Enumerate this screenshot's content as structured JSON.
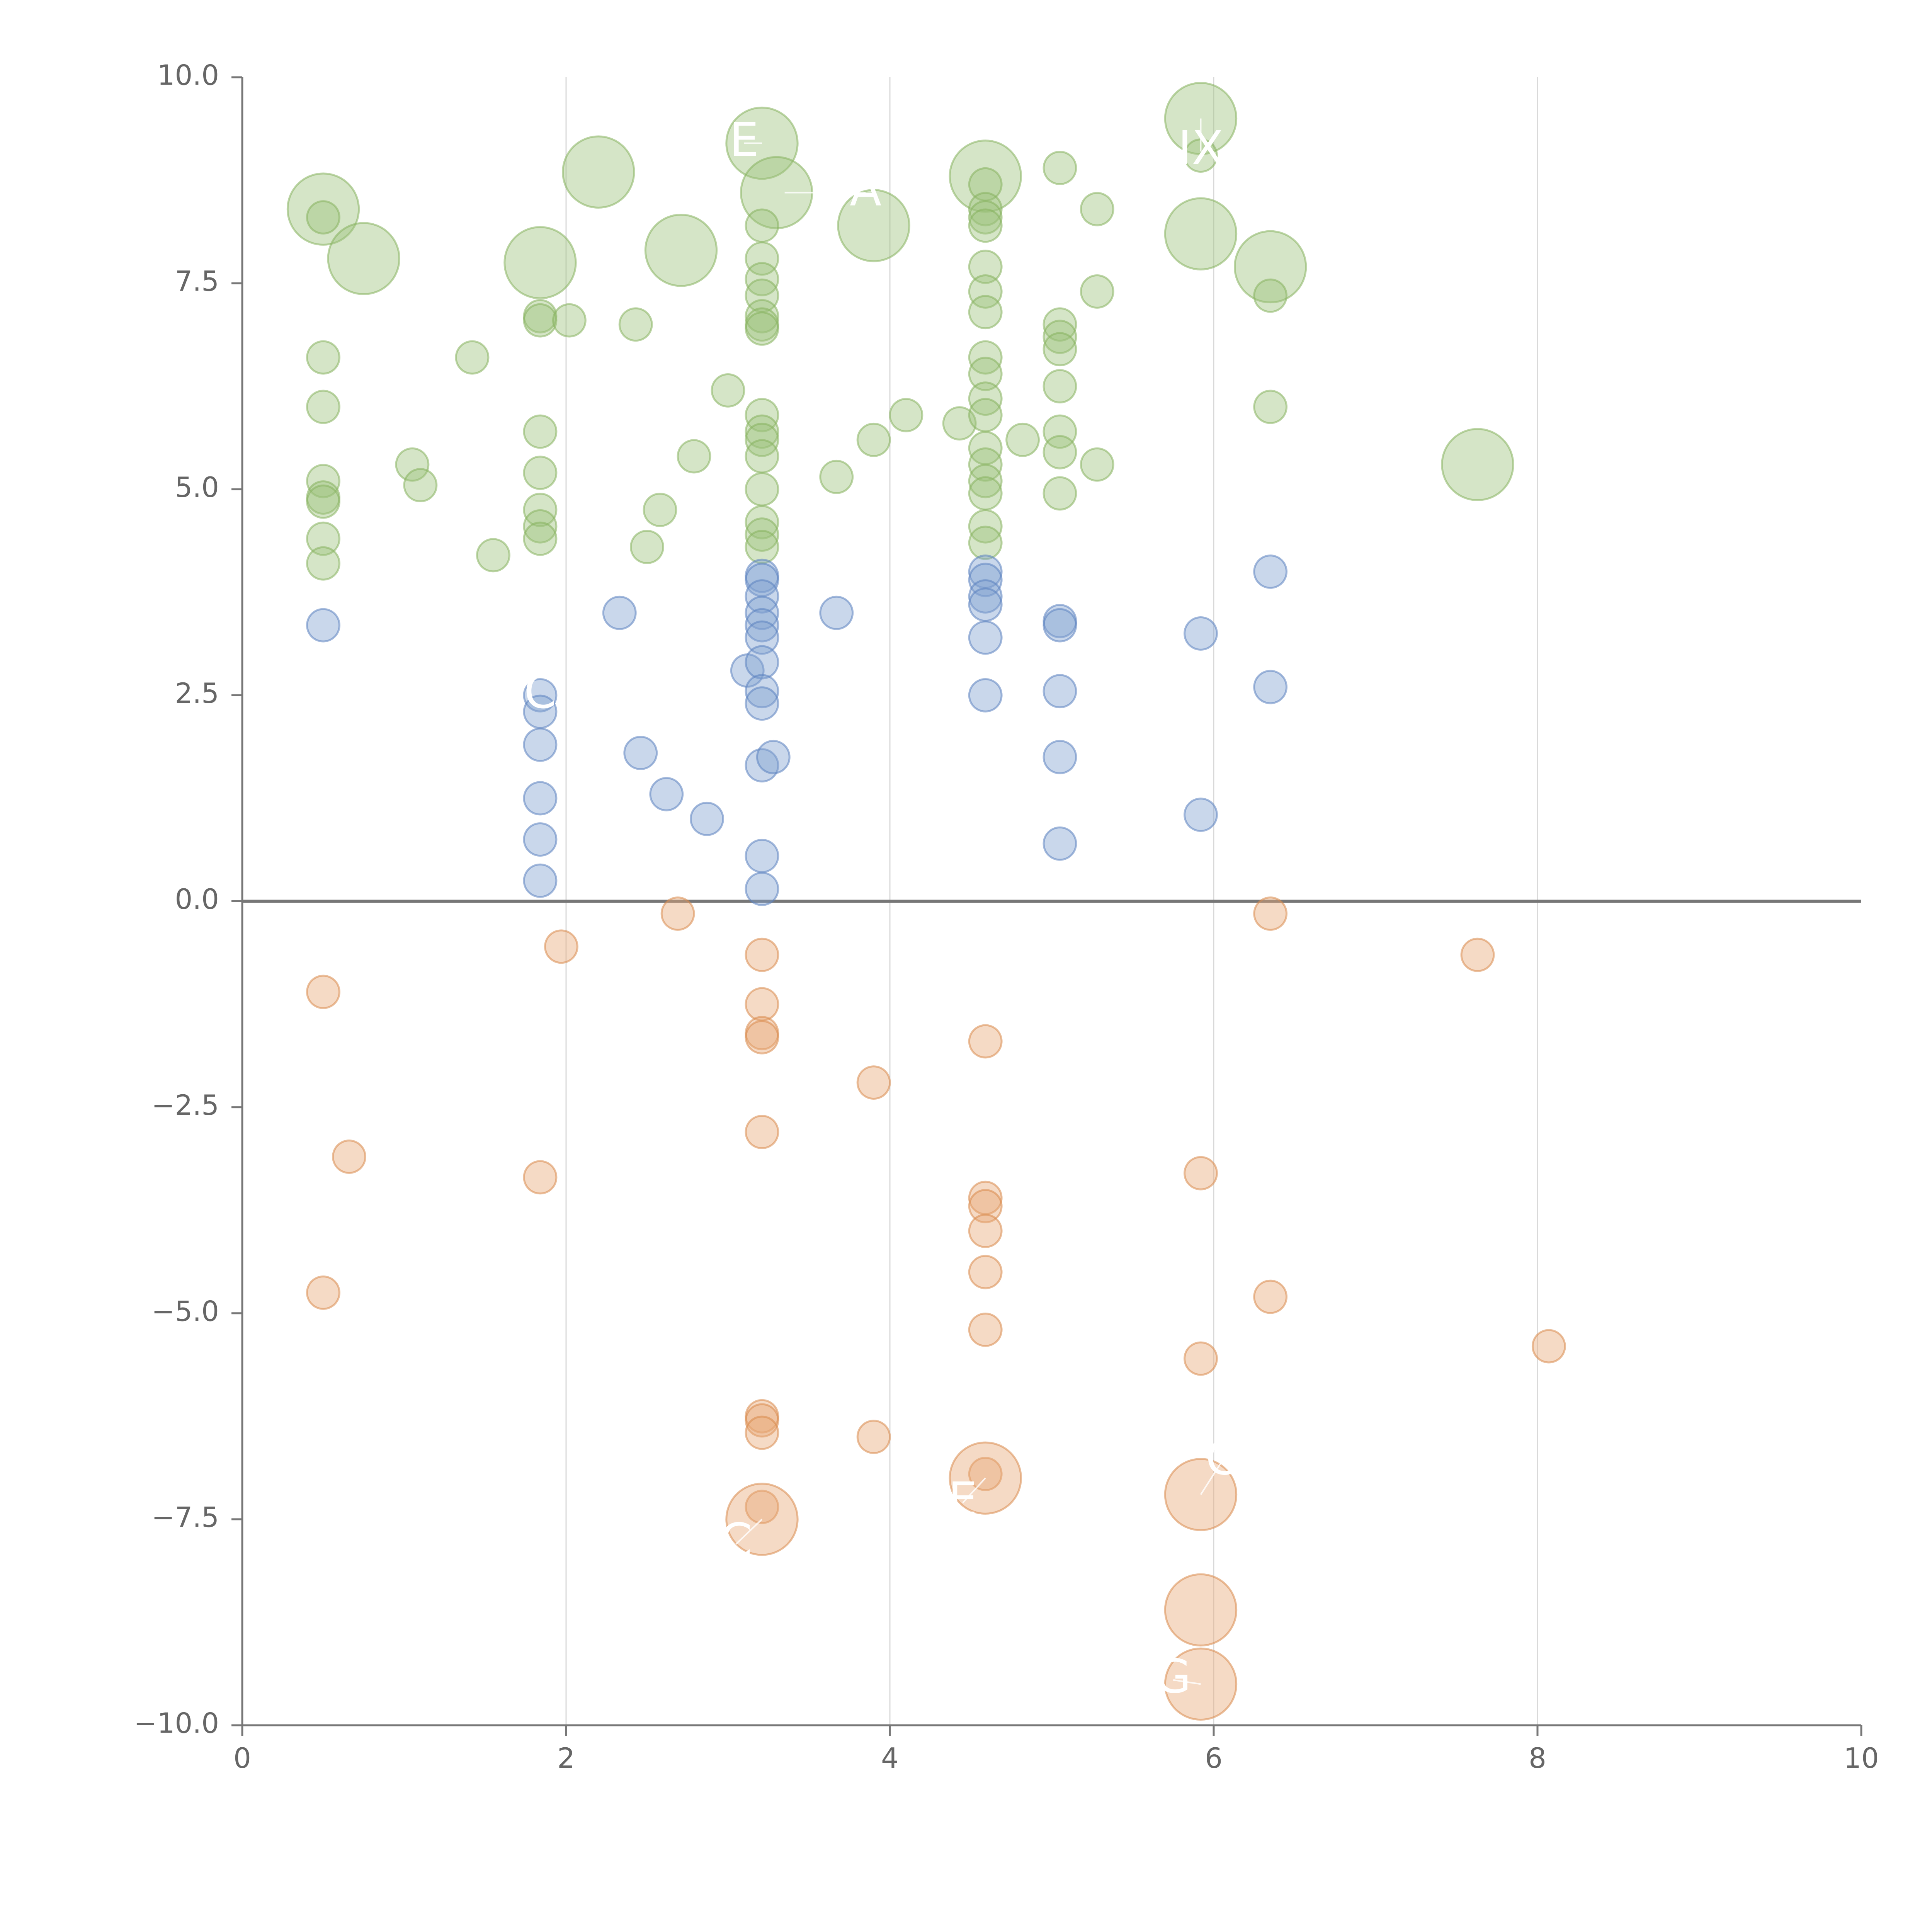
{
  "chart_data": {
    "type": "scatter",
    "title": "",
    "xlabel": "",
    "ylabel": "",
    "xlim": [
      0,
      10
    ],
    "ylim": [
      -10,
      10
    ],
    "x_ticks": [
      0,
      2,
      4,
      6,
      8,
      10
    ],
    "y_ticks": [
      -10.0,
      -7.5,
      -5.0,
      -2.5,
      0.0,
      2.5,
      5.0,
      7.5,
      10.0
    ],
    "x_tick_labels": [
      "0",
      "2",
      "4",
      "6",
      "8",
      "10"
    ],
    "y_tick_labels": [
      "−10.0",
      "−7.5",
      "−5.0",
      "−2.5",
      "0.0",
      "2.5",
      "5.0",
      "7.5",
      "10.0"
    ],
    "grid": "vertical",
    "zero_line": true,
    "legend": "none",
    "series": [
      {
        "name": "green",
        "color": "#9bc27a",
        "stroke": "#86b35e",
        "points": [
          {
            "x": 0.5,
            "y": 8.4,
            "r": 0.22
          },
          {
            "x": 0.5,
            "y": 8.3,
            "r": 0.1
          },
          {
            "x": 0.75,
            "y": 7.8,
            "r": 0.22
          },
          {
            "x": 0.5,
            "y": 6.6,
            "r": 0.1
          },
          {
            "x": 0.5,
            "y": 6.0,
            "r": 0.1
          },
          {
            "x": 0.5,
            "y": 5.1,
            "r": 0.1
          },
          {
            "x": 0.5,
            "y": 4.9,
            "r": 0.1
          },
          {
            "x": 0.5,
            "y": 4.85,
            "r": 0.1
          },
          {
            "x": 0.5,
            "y": 4.4,
            "r": 0.1
          },
          {
            "x": 0.5,
            "y": 4.1,
            "r": 0.1
          },
          {
            "x": 1.05,
            "y": 5.3,
            "r": 0.1
          },
          {
            "x": 1.1,
            "y": 5.05,
            "r": 0.1
          },
          {
            "x": 1.42,
            "y": 6.6,
            "r": 0.1
          },
          {
            "x": 1.55,
            "y": 4.2,
            "r": 0.1
          },
          {
            "x": 1.84,
            "y": 7.75,
            "r": 0.22
          },
          {
            "x": 1.84,
            "y": 7.1,
            "r": 0.1
          },
          {
            "x": 1.84,
            "y": 7.05,
            "r": 0.1
          },
          {
            "x": 1.84,
            "y": 5.7,
            "r": 0.1
          },
          {
            "x": 1.84,
            "y": 5.2,
            "r": 0.1
          },
          {
            "x": 1.84,
            "y": 4.75,
            "r": 0.1
          },
          {
            "x": 1.84,
            "y": 4.55,
            "r": 0.1
          },
          {
            "x": 1.84,
            "y": 4.4,
            "r": 0.1
          },
          {
            "x": 2.02,
            "y": 7.05,
            "r": 0.1
          },
          {
            "x": 2.2,
            "y": 8.85,
            "r": 0.22
          },
          {
            "x": 2.43,
            "y": 7.0,
            "r": 0.1
          },
          {
            "x": 2.5,
            "y": 4.3,
            "r": 0.1
          },
          {
            "x": 2.58,
            "y": 4.75,
            "r": 0.1
          },
          {
            "x": 2.71,
            "y": 7.9,
            "r": 0.22
          },
          {
            "x": 2.79,
            "y": 5.4,
            "r": 0.1
          },
          {
            "x": 3.0,
            "y": 6.2,
            "r": 0.1
          },
          {
            "x": 3.21,
            "y": 9.2,
            "r": 0.22
          },
          {
            "x": 3.3,
            "y": 8.6,
            "r": 0.22
          },
          {
            "x": 3.21,
            "y": 8.2,
            "r": 0.1
          },
          {
            "x": 3.21,
            "y": 7.8,
            "r": 0.1
          },
          {
            "x": 3.21,
            "y": 7.55,
            "r": 0.1
          },
          {
            "x": 3.21,
            "y": 7.35,
            "r": 0.1
          },
          {
            "x": 3.21,
            "y": 7.1,
            "r": 0.1
          },
          {
            "x": 3.21,
            "y": 7.0,
            "r": 0.1
          },
          {
            "x": 3.21,
            "y": 6.95,
            "r": 0.1
          },
          {
            "x": 3.21,
            "y": 5.9,
            "r": 0.1
          },
          {
            "x": 3.21,
            "y": 5.7,
            "r": 0.1
          },
          {
            "x": 3.21,
            "y": 5.6,
            "r": 0.1
          },
          {
            "x": 3.21,
            "y": 5.4,
            "r": 0.1
          },
          {
            "x": 3.21,
            "y": 5.0,
            "r": 0.1
          },
          {
            "x": 3.21,
            "y": 4.6,
            "r": 0.1
          },
          {
            "x": 3.21,
            "y": 4.45,
            "r": 0.1
          },
          {
            "x": 3.21,
            "y": 4.3,
            "r": 0.1
          },
          {
            "x": 3.67,
            "y": 5.15,
            "r": 0.1
          },
          {
            "x": 3.9,
            "y": 8.2,
            "r": 0.22
          },
          {
            "x": 3.9,
            "y": 5.6,
            "r": 0.1
          },
          {
            "x": 4.1,
            "y": 5.9,
            "r": 0.1
          },
          {
            "x": 4.43,
            "y": 5.8,
            "r": 0.1
          },
          {
            "x": 4.59,
            "y": 8.8,
            "r": 0.22
          },
          {
            "x": 4.59,
            "y": 8.7,
            "r": 0.1
          },
          {
            "x": 4.59,
            "y": 8.4,
            "r": 0.1
          },
          {
            "x": 4.59,
            "y": 8.3,
            "r": 0.1
          },
          {
            "x": 4.59,
            "y": 8.2,
            "r": 0.1
          },
          {
            "x": 4.59,
            "y": 7.7,
            "r": 0.1
          },
          {
            "x": 4.59,
            "y": 7.4,
            "r": 0.1
          },
          {
            "x": 4.59,
            "y": 7.15,
            "r": 0.1
          },
          {
            "x": 4.59,
            "y": 6.6,
            "r": 0.1
          },
          {
            "x": 4.59,
            "y": 6.4,
            "r": 0.1
          },
          {
            "x": 4.59,
            "y": 6.1,
            "r": 0.1
          },
          {
            "x": 4.59,
            "y": 5.9,
            "r": 0.1
          },
          {
            "x": 4.59,
            "y": 5.5,
            "r": 0.1
          },
          {
            "x": 4.59,
            "y": 5.3,
            "r": 0.1
          },
          {
            "x": 4.59,
            "y": 5.1,
            "r": 0.1
          },
          {
            "x": 4.59,
            "y": 4.95,
            "r": 0.1
          },
          {
            "x": 4.59,
            "y": 4.55,
            "r": 0.1
          },
          {
            "x": 4.59,
            "y": 4.35,
            "r": 0.1
          },
          {
            "x": 4.82,
            "y": 5.6,
            "r": 0.1
          },
          {
            "x": 5.05,
            "y": 8.9,
            "r": 0.1
          },
          {
            "x": 5.05,
            "y": 7.0,
            "r": 0.1
          },
          {
            "x": 5.05,
            "y": 6.85,
            "r": 0.1
          },
          {
            "x": 5.05,
            "y": 6.7,
            "r": 0.1
          },
          {
            "x": 5.05,
            "y": 6.25,
            "r": 0.1
          },
          {
            "x": 5.05,
            "y": 5.7,
            "r": 0.1
          },
          {
            "x": 5.05,
            "y": 5.45,
            "r": 0.1
          },
          {
            "x": 5.05,
            "y": 4.95,
            "r": 0.1
          },
          {
            "x": 5.28,
            "y": 8.4,
            "r": 0.1
          },
          {
            "x": 5.28,
            "y": 7.4,
            "r": 0.1
          },
          {
            "x": 5.28,
            "y": 5.3,
            "r": 0.1
          },
          {
            "x": 5.92,
            "y": 9.5,
            "r": 0.22
          },
          {
            "x": 5.92,
            "y": 9.05,
            "r": 0.1
          },
          {
            "x": 5.92,
            "y": 8.1,
            "r": 0.22
          },
          {
            "x": 6.35,
            "y": 7.7,
            "r": 0.22
          },
          {
            "x": 6.35,
            "y": 7.35,
            "r": 0.1
          },
          {
            "x": 6.35,
            "y": 6.0,
            "r": 0.1
          },
          {
            "x": 7.63,
            "y": 5.3,
            "r": 0.22
          }
        ]
      },
      {
        "name": "blue",
        "color": "#7f9fcf",
        "stroke": "#5b82c0",
        "points": [
          {
            "x": 0.5,
            "y": 3.35,
            "r": 0.1
          },
          {
            "x": 1.84,
            "y": 2.5,
            "r": 0.1
          },
          {
            "x": 1.84,
            "y": 2.3,
            "r": 0.1
          },
          {
            "x": 1.84,
            "y": 1.9,
            "r": 0.1
          },
          {
            "x": 1.84,
            "y": 1.25,
            "r": 0.1
          },
          {
            "x": 1.84,
            "y": 0.75,
            "r": 0.1
          },
          {
            "x": 1.84,
            "y": 0.25,
            "r": 0.1
          },
          {
            "x": 2.33,
            "y": 3.5,
            "r": 0.1
          },
          {
            "x": 2.46,
            "y": 1.8,
            "r": 0.1
          },
          {
            "x": 2.62,
            "y": 1.3,
            "r": 0.1
          },
          {
            "x": 2.87,
            "y": 1.0,
            "r": 0.1
          },
          {
            "x": 3.12,
            "y": 2.8,
            "r": 0.1
          },
          {
            "x": 3.21,
            "y": 3.95,
            "r": 0.1
          },
          {
            "x": 3.21,
            "y": 3.9,
            "r": 0.1
          },
          {
            "x": 3.21,
            "y": 3.7,
            "r": 0.1
          },
          {
            "x": 3.21,
            "y": 3.5,
            "r": 0.1
          },
          {
            "x": 3.21,
            "y": 3.35,
            "r": 0.1
          },
          {
            "x": 3.21,
            "y": 3.2,
            "r": 0.1
          },
          {
            "x": 3.21,
            "y": 2.9,
            "r": 0.1
          },
          {
            "x": 3.21,
            "y": 2.55,
            "r": 0.1
          },
          {
            "x": 3.21,
            "y": 2.4,
            "r": 0.1
          },
          {
            "x": 3.21,
            "y": 1.65,
            "r": 0.1
          },
          {
            "x": 3.28,
            "y": 1.75,
            "r": 0.1
          },
          {
            "x": 3.21,
            "y": 0.55,
            "r": 0.1
          },
          {
            "x": 3.21,
            "y": 0.15,
            "r": 0.1
          },
          {
            "x": 3.67,
            "y": 3.5,
            "r": 0.1
          },
          {
            "x": 4.59,
            "y": 4.0,
            "r": 0.1
          },
          {
            "x": 4.59,
            "y": 3.9,
            "r": 0.1
          },
          {
            "x": 4.59,
            "y": 3.7,
            "r": 0.1
          },
          {
            "x": 4.59,
            "y": 3.6,
            "r": 0.1
          },
          {
            "x": 4.59,
            "y": 3.2,
            "r": 0.1
          },
          {
            "x": 4.59,
            "y": 2.5,
            "r": 0.1
          },
          {
            "x": 5.05,
            "y": 3.4,
            "r": 0.1
          },
          {
            "x": 5.05,
            "y": 3.35,
            "r": 0.1
          },
          {
            "x": 5.05,
            "y": 2.55,
            "r": 0.1
          },
          {
            "x": 5.05,
            "y": 1.75,
            "r": 0.1
          },
          {
            "x": 5.05,
            "y": 0.7,
            "r": 0.1
          },
          {
            "x": 5.92,
            "y": 3.25,
            "r": 0.1
          },
          {
            "x": 5.92,
            "y": 1.05,
            "r": 0.1
          },
          {
            "x": 6.35,
            "y": 4.0,
            "r": 0.1
          },
          {
            "x": 6.35,
            "y": 2.6,
            "r": 0.1
          }
        ]
      },
      {
        "name": "orange",
        "color": "#e8a875",
        "stroke": "#d98a4d",
        "points": [
          {
            "x": 0.5,
            "y": -1.1,
            "r": 0.1
          },
          {
            "x": 0.5,
            "y": -4.75,
            "r": 0.1
          },
          {
            "x": 0.66,
            "y": -3.1,
            "r": 0.1
          },
          {
            "x": 1.84,
            "y": -3.35,
            "r": 0.1
          },
          {
            "x": 1.97,
            "y": -0.55,
            "r": 0.1
          },
          {
            "x": 2.69,
            "y": -0.15,
            "r": 0.1
          },
          {
            "x": 3.21,
            "y": -0.65,
            "r": 0.1
          },
          {
            "x": 3.21,
            "y": -1.25,
            "r": 0.1
          },
          {
            "x": 3.21,
            "y": -1.6,
            "r": 0.1
          },
          {
            "x": 3.21,
            "y": -1.65,
            "r": 0.1
          },
          {
            "x": 3.21,
            "y": -2.8,
            "r": 0.1
          },
          {
            "x": 3.21,
            "y": -6.25,
            "r": 0.1
          },
          {
            "x": 3.21,
            "y": -6.3,
            "r": 0.1
          },
          {
            "x": 3.21,
            "y": -6.45,
            "r": 0.1
          },
          {
            "x": 3.21,
            "y": -7.35,
            "r": 0.1
          },
          {
            "x": 3.21,
            "y": -7.5,
            "r": 0.22
          },
          {
            "x": 3.9,
            "y": -2.2,
            "r": 0.1
          },
          {
            "x": 3.9,
            "y": -6.5,
            "r": 0.1
          },
          {
            "x": 4.59,
            "y": -1.7,
            "r": 0.1
          },
          {
            "x": 4.59,
            "y": -3.6,
            "r": 0.1
          },
          {
            "x": 4.59,
            "y": -3.7,
            "r": 0.1
          },
          {
            "x": 4.59,
            "y": -4.0,
            "r": 0.1
          },
          {
            "x": 4.59,
            "y": -4.5,
            "r": 0.1
          },
          {
            "x": 4.59,
            "y": -5.2,
            "r": 0.1
          },
          {
            "x": 4.59,
            "y": -6.95,
            "r": 0.1
          },
          {
            "x": 4.59,
            "y": -7.0,
            "r": 0.22
          },
          {
            "x": 5.92,
            "y": -3.3,
            "r": 0.1
          },
          {
            "x": 5.92,
            "y": -5.55,
            "r": 0.1
          },
          {
            "x": 5.92,
            "y": -7.2,
            "r": 0.22
          },
          {
            "x": 5.92,
            "y": -8.6,
            "r": 0.22
          },
          {
            "x": 5.92,
            "y": -9.5,
            "r": 0.22
          },
          {
            "x": 6.35,
            "y": -0.15,
            "r": 0.1
          },
          {
            "x": 6.35,
            "y": -4.8,
            "r": 0.1
          },
          {
            "x": 7.63,
            "y": -0.65,
            "r": 0.1
          },
          {
            "x": 8.07,
            "y": -5.4,
            "r": 0.1
          }
        ]
      }
    ],
    "annotations": [
      {
        "text": "E",
        "x": 3.1,
        "y": 9.2,
        "ax": 3.21,
        "ay": 9.2
      },
      {
        "text": "A",
        "x": 3.85,
        "y": 8.6,
        "ax": 3.35,
        "ay": 8.6
      },
      {
        "text": "IX",
        "x": 5.92,
        "y": 9.1,
        "ax": 5.92,
        "ay": 9.5
      },
      {
        "text": "C",
        "x": 1.84,
        "y": 2.5,
        "ax": 1.84,
        "ay": 2.5
      },
      {
        "text": "C",
        "x": 3.05,
        "y": -7.8,
        "ax": 3.21,
        "ay": -7.5
      },
      {
        "text": "E",
        "x": 4.45,
        "y": -7.3,
        "ax": 4.59,
        "ay": -7.0
      },
      {
        "text": "C",
        "x": 6.05,
        "y": -6.8,
        "ax": 5.92,
        "ay": -7.2
      },
      {
        "text": "G",
        "x": 5.75,
        "y": -9.45,
        "ax": 5.92,
        "ay": -9.5
      }
    ]
  }
}
